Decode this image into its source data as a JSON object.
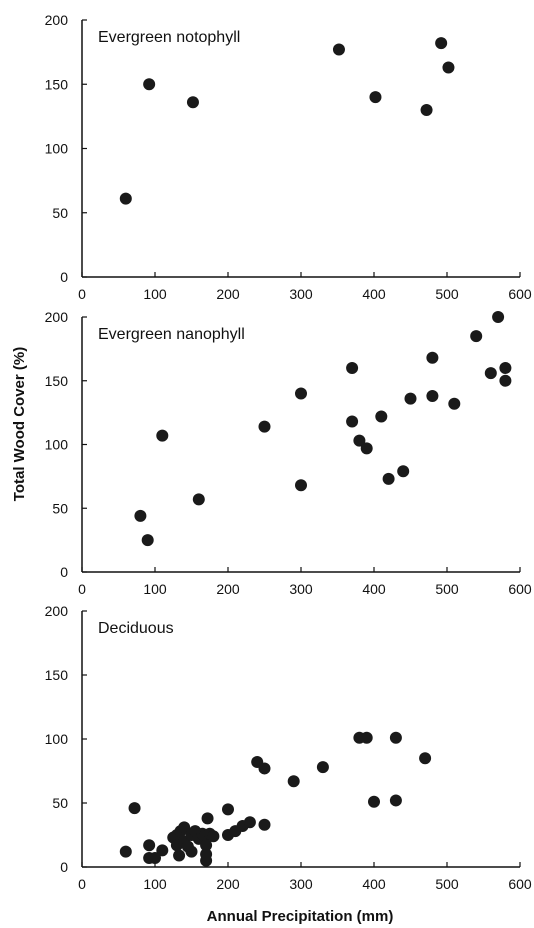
{
  "chart_data": [
    {
      "type": "scatter",
      "title": "Evergreen notophyll",
      "xlim": [
        0,
        600
      ],
      "ylim": [
        0,
        200
      ],
      "xticks": [
        "0",
        "100",
        "200",
        "300",
        "400",
        "500",
        "600"
      ],
      "yticks": [
        "0",
        "50",
        "100",
        "150",
        "200"
      ],
      "grid": false,
      "x": [
        60,
        92,
        152,
        352,
        402,
        472,
        492,
        502
      ],
      "y": [
        61,
        150,
        136,
        177,
        140,
        130,
        182,
        163
      ]
    },
    {
      "type": "scatter",
      "title": "Evergreen nanophyll",
      "xlim": [
        0,
        600
      ],
      "ylim": [
        0,
        200
      ],
      "xticks": [
        "0",
        "100",
        "200",
        "300",
        "400",
        "500",
        "600"
      ],
      "yticks": [
        "0",
        "50",
        "100",
        "150",
        "200"
      ],
      "grid": false,
      "x": [
        80,
        90,
        110,
        160,
        250,
        300,
        300,
        370,
        370,
        380,
        390,
        410,
        420,
        440,
        450,
        480,
        480,
        510,
        540,
        560,
        570,
        580,
        580
      ],
      "y": [
        44,
        25,
        107,
        57,
        114,
        140,
        68,
        118,
        160,
        103,
        97,
        122,
        73,
        79,
        136,
        168,
        138,
        132,
        185,
        156,
        200,
        160,
        150
      ]
    },
    {
      "type": "scatter",
      "title": "Deciduous",
      "xlim": [
        0,
        600
      ],
      "ylim": [
        0,
        200
      ],
      "xticks": [
        "0",
        "100",
        "200",
        "300",
        "400",
        "500",
        "600"
      ],
      "yticks": [
        "0",
        "50",
        "100",
        "150",
        "200"
      ],
      "grid": false,
      "x": [
        60,
        72,
        92,
        92,
        100,
        110,
        125,
        130,
        130,
        133,
        135,
        140,
        140,
        145,
        150,
        150,
        155,
        160,
        165,
        168,
        170,
        170,
        170,
        172,
        175,
        180,
        200,
        200,
        210,
        220,
        230,
        240,
        250,
        250,
        290,
        330,
        380,
        390,
        400,
        430,
        430,
        470
      ],
      "y": [
        12,
        46,
        7,
        17,
        7,
        13,
        23,
        25,
        17,
        9,
        28,
        20,
        31,
        16,
        12,
        25,
        28,
        22,
        26,
        24,
        5,
        10,
        17,
        38,
        26,
        24,
        45,
        25,
        28,
        32,
        35,
        82,
        77,
        33,
        67,
        78,
        101,
        101,
        51,
        101,
        52,
        85
      ]
    }
  ],
  "ylabel": "Total Wood Cover (%)",
  "xlabel": "Annual Precipitation (mm)"
}
